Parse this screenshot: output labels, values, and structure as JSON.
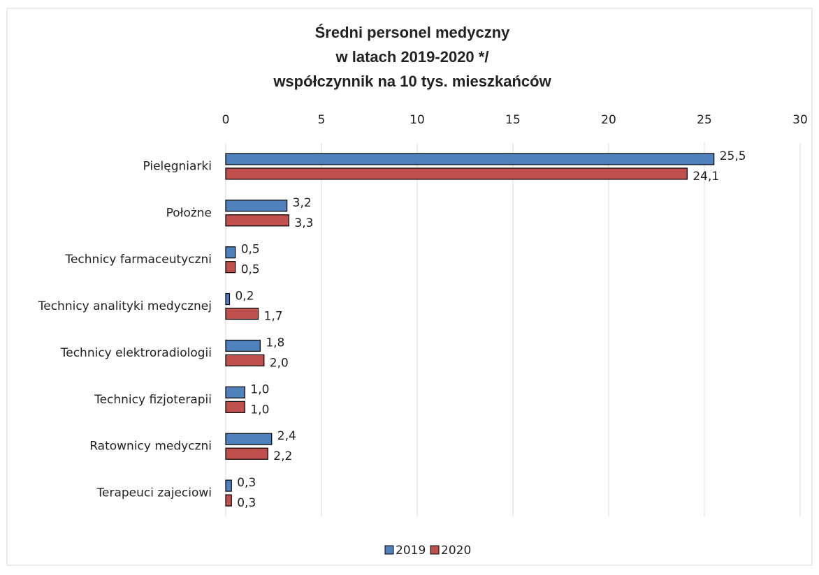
{
  "chart_data": {
    "type": "hbar",
    "title": [
      "Średni personel medyczny",
      "w latach 2019-2020 */",
      "współczynnik na 10 tys. mieszkańców"
    ],
    "categories": [
      "Pielęgniarki",
      "Położne",
      "Technicy farmaceutyczni",
      "Technicy analityki medycznej",
      "Technicy elektroradiologii",
      "Technicy fizjoterapii",
      "Ratownicy medyczni",
      "Terapeuci zajeciowi"
    ],
    "series": [
      {
        "name": "2019",
        "color": "#4f81bd",
        "values": [
          25.5,
          3.2,
          0.5,
          0.2,
          1.8,
          1.0,
          2.4,
          0.3
        ],
        "value_labels": [
          "25,5",
          "3,2",
          "0,5",
          "0,2",
          "1,8",
          "1,0",
          "2,4",
          "0,3"
        ]
      },
      {
        "name": "2020",
        "color": "#c0504d",
        "values": [
          24.1,
          3.3,
          0.5,
          1.7,
          2.0,
          1.0,
          2.2,
          0.3
        ],
        "value_labels": [
          "24,1",
          "3,3",
          "0,5",
          "1,7",
          "2,0",
          "1,0",
          "2,2",
          "0,3"
        ]
      }
    ],
    "xlim": [
      0,
      30
    ],
    "xticks": [
      0,
      5,
      10,
      15,
      20,
      25,
      30
    ],
    "grid": true,
    "legend": "bottom"
  }
}
